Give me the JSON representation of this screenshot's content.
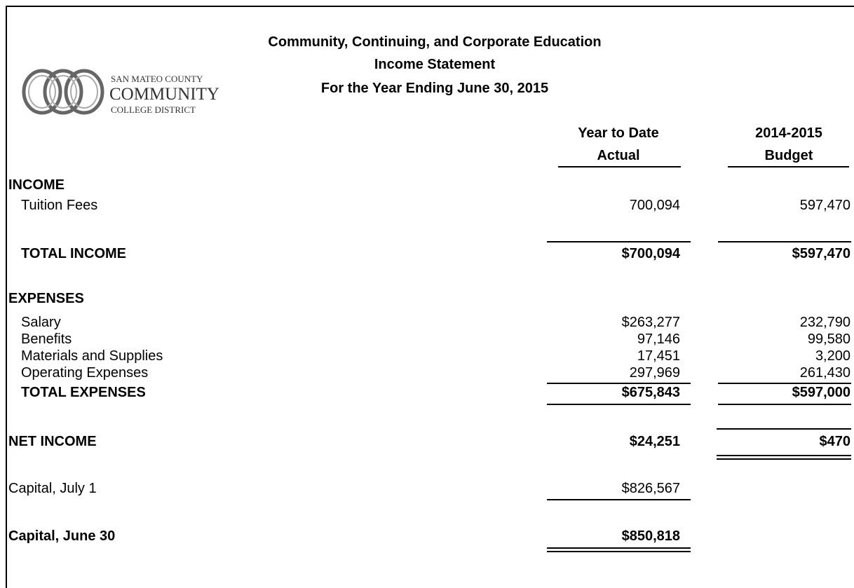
{
  "header": {
    "title_lines": [
      "Community, Continuing, and Corporate Education",
      "Income Statement",
      "For the Year Ending June 30, 2015"
    ],
    "logo": {
      "line1": "SAN MATEO COUNTY",
      "line2": "COMMUNITY",
      "line3": "COLLEGE DISTRICT"
    }
  },
  "columns": [
    {
      "line1": "Year to Date",
      "line2": "Actual"
    },
    {
      "line1": "2014-2015",
      "line2": "Budget"
    }
  ],
  "rows": [
    {
      "label": "INCOME"
    },
    {
      "label": "Tuition Fees",
      "values": [
        "700,094",
        "597,470"
      ]
    },
    {
      "label": "TOTAL INCOME",
      "values": [
        "$700,094",
        "$597,470"
      ]
    },
    {
      "label": "EXPENSES"
    },
    {
      "label": "Salary",
      "values": [
        "$263,277",
        "232,790"
      ]
    },
    {
      "label": "Benefits",
      "values": [
        "97,146",
        "99,580"
      ]
    },
    {
      "label": "Materials and Supplies",
      "values": [
        "17,451",
        "3,200"
      ]
    },
    {
      "label": "Operating Expenses",
      "values": [
        "297,969",
        "261,430"
      ]
    },
    {
      "label": "TOTAL EXPENSES",
      "values": [
        "$675,843",
        "$597,000"
      ]
    },
    {
      "label": "NET INCOME",
      "values": [
        "$24,251",
        "$470"
      ]
    },
    {
      "label": "Capital, July 1",
      "values": [
        "$826,567"
      ]
    },
    {
      "label": "Capital, June 30",
      "values": [
        "$850,818"
      ]
    }
  ]
}
